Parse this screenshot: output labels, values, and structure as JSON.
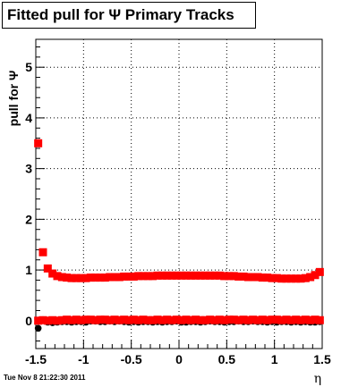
{
  "title": "Fitted pull for  Ψ   Primary Tracks",
  "timestamp": "Tue Nov  8 21:22:30 2011",
  "chart_data": {
    "type": "scatter",
    "title": "Fitted pull for  Ψ   Primary Tracks",
    "xlabel": "η",
    "ylabel": "pull for Ψ",
    "xlim": [
      -1.5,
      1.5
    ],
    "ylim": [
      -0.55,
      5.55
    ],
    "xticks": [
      "-1.5",
      "-1",
      "-0.5",
      "0",
      "0.5",
      "1",
      "1.5"
    ],
    "yticks": [
      "0",
      "1",
      "2",
      "3",
      "4",
      "5"
    ],
    "grid": true,
    "series": [
      {
        "marker": "circle",
        "color": "#000000",
        "x": [
          -1.475,
          -1.425,
          -1.375,
          -1.325,
          -1.275,
          -1.225,
          -1.175,
          -1.125,
          -1.075,
          -1.025,
          -0.975,
          -0.925,
          -0.875,
          -0.825,
          -0.775,
          -0.725,
          -0.675,
          -0.625,
          -0.575,
          -0.525,
          -0.475,
          -0.425,
          -0.375,
          -0.325,
          -0.275,
          -0.225,
          -0.175,
          -0.125,
          -0.075,
          -0.025,
          0.025,
          0.075,
          0.125,
          0.175,
          0.225,
          0.275,
          0.325,
          0.375,
          0.425,
          0.475,
          0.525,
          0.575,
          0.625,
          0.675,
          0.725,
          0.775,
          0.825,
          0.875,
          0.925,
          0.975,
          1.025,
          1.075,
          1.125,
          1.175,
          1.225,
          1.275,
          1.325,
          1.375,
          1.425,
          1.475
        ],
        "y": [
          -0.15,
          0.02,
          -0.03,
          -0.04,
          -0.03,
          -0.02,
          -0.02,
          -0.03,
          -0.02,
          -0.02,
          -0.03,
          -0.01,
          -0.01,
          -0.02,
          -0.02,
          -0.01,
          -0.02,
          -0.01,
          -0.02,
          -0.03,
          -0.02,
          -0.03,
          -0.02,
          -0.02,
          -0.03,
          -0.02,
          -0.03,
          -0.02,
          -0.02,
          -0.01,
          -0.03,
          -0.03,
          -0.02,
          -0.02,
          -0.03,
          -0.02,
          -0.01,
          -0.02,
          -0.02,
          -0.03,
          -0.02,
          -0.02,
          -0.01,
          -0.02,
          -0.02,
          -0.01,
          -0.02,
          -0.02,
          -0.03,
          -0.02,
          -0.03,
          -0.02,
          -0.02,
          -0.03,
          -0.02,
          -0.03,
          -0.02,
          -0.03,
          -0.03,
          -0.02
        ]
      },
      {
        "marker": "square",
        "color": "#ff0000",
        "x": [
          -1.475,
          -1.425,
          -1.375,
          -1.325,
          -1.275,
          -1.225,
          -1.175,
          -1.125,
          -1.075,
          -1.025,
          -0.975,
          -0.925,
          -0.875,
          -0.825,
          -0.775,
          -0.725,
          -0.675,
          -0.625,
          -0.575,
          -0.525,
          -0.475,
          -0.425,
          -0.375,
          -0.325,
          -0.275,
          -0.225,
          -0.175,
          -0.125,
          -0.075,
          -0.025,
          0.025,
          0.075,
          0.125,
          0.175,
          0.225,
          0.275,
          0.325,
          0.375,
          0.425,
          0.475,
          0.525,
          0.575,
          0.625,
          0.675,
          0.725,
          0.775,
          0.825,
          0.875,
          0.925,
          0.975,
          1.025,
          1.075,
          1.125,
          1.175,
          1.225,
          1.275,
          1.325,
          1.375,
          1.425,
          1.475
        ],
        "y": [
          0.0,
          0.01,
          0.0,
          0.01,
          0.0,
          0.01,
          0.02,
          0.01,
          0.02,
          0.01,
          0.02,
          0.02,
          0.01,
          0.02,
          0.02,
          0.01,
          0.02,
          0.01,
          0.02,
          0.01,
          0.02,
          0.01,
          0.02,
          0.01,
          0.01,
          0.02,
          0.01,
          0.02,
          0.01,
          0.02,
          0.01,
          0.02,
          0.01,
          0.02,
          0.01,
          0.01,
          0.02,
          0.01,
          0.02,
          0.01,
          0.02,
          0.02,
          0.01,
          0.02,
          0.01,
          0.02,
          0.01,
          0.02,
          0.01,
          0.02,
          0.02,
          0.01,
          0.02,
          0.01,
          0.02,
          0.01,
          0.02,
          0.01,
          0.02,
          0.01
        ]
      },
      {
        "marker": "square",
        "color": "#ff0000",
        "x": [
          -1.475,
          -1.425,
          -1.375,
          -1.325,
          -1.275,
          -1.225,
          -1.175,
          -1.125,
          -1.075,
          -1.025,
          -0.975,
          -0.925,
          -0.875,
          -0.825,
          -0.775,
          -0.725,
          -0.675,
          -0.625,
          -0.575,
          -0.525,
          -0.475,
          -0.425,
          -0.375,
          -0.325,
          -0.275,
          -0.225,
          -0.175,
          -0.125,
          -0.075,
          -0.025,
          0.025,
          0.075,
          0.125,
          0.175,
          0.225,
          0.275,
          0.325,
          0.375,
          0.425,
          0.475,
          0.525,
          0.575,
          0.625,
          0.675,
          0.725,
          0.775,
          0.825,
          0.875,
          0.925,
          0.975,
          1.025,
          1.075,
          1.125,
          1.175,
          1.225,
          1.275,
          1.325,
          1.375,
          1.425,
          1.475
        ],
        "y": [
          3.5,
          1.35,
          1.03,
          0.93,
          0.88,
          0.86,
          0.85,
          0.84,
          0.84,
          0.84,
          0.84,
          0.85,
          0.85,
          0.85,
          0.85,
          0.86,
          0.86,
          0.86,
          0.87,
          0.87,
          0.87,
          0.88,
          0.88,
          0.88,
          0.88,
          0.89,
          0.89,
          0.89,
          0.89,
          0.89,
          0.89,
          0.89,
          0.89,
          0.89,
          0.89,
          0.89,
          0.89,
          0.89,
          0.89,
          0.88,
          0.88,
          0.88,
          0.87,
          0.87,
          0.86,
          0.86,
          0.86,
          0.85,
          0.85,
          0.84,
          0.84,
          0.83,
          0.83,
          0.83,
          0.83,
          0.83,
          0.84,
          0.86,
          0.9,
          0.96
        ]
      }
    ]
  }
}
